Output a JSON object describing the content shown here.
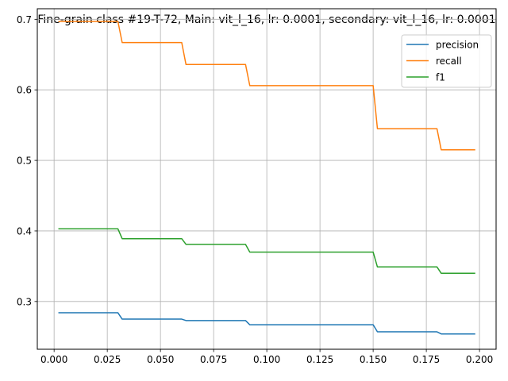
{
  "chart_data": {
    "type": "line",
    "title": "Fine-grain class #19-T-72, Main: vit_l_16, lr: 0.0001, secondary: vit_l_16, lr: 0.0001",
    "xlabel": "",
    "ylabel": "",
    "xlim": [
      -0.0079,
      0.2078
    ],
    "ylim": [
      0.2323,
      0.715
    ],
    "x_ticks": [
      0.0,
      0.025,
      0.05,
      0.075,
      0.1,
      0.125,
      0.15,
      0.175,
      0.2
    ],
    "x_tick_labels": [
      "0.000",
      "0.025",
      "0.050",
      "0.075",
      "0.100",
      "0.125",
      "0.150",
      "0.175",
      "0.200"
    ],
    "y_ticks": [
      0.3,
      0.4,
      0.5,
      0.6,
      0.7
    ],
    "y_tick_labels": [
      "0.3",
      "0.4",
      "0.5",
      "0.6",
      "0.7"
    ],
    "grid": true,
    "legend_position": "top-right",
    "series": [
      {
        "name": "precision",
        "color": "#1f77b4",
        "x": [
          0.002,
          0.03,
          0.032,
          0.06,
          0.062,
          0.09,
          0.092,
          0.15,
          0.152,
          0.18,
          0.182,
          0.198
        ],
        "y": [
          0.284,
          0.284,
          0.275,
          0.275,
          0.273,
          0.273,
          0.267,
          0.267,
          0.257,
          0.257,
          0.254,
          0.254
        ]
      },
      {
        "name": "recall",
        "color": "#ff7f0e",
        "x": [
          0.002,
          0.03,
          0.032,
          0.06,
          0.062,
          0.09,
          0.092,
          0.15,
          0.152,
          0.18,
          0.182,
          0.198
        ],
        "y": [
          0.697,
          0.697,
          0.667,
          0.667,
          0.636,
          0.636,
          0.606,
          0.606,
          0.545,
          0.545,
          0.515,
          0.515
        ]
      },
      {
        "name": "f1",
        "color": "#2ca02c",
        "x": [
          0.002,
          0.03,
          0.032,
          0.06,
          0.062,
          0.09,
          0.092,
          0.15,
          0.152,
          0.18,
          0.182,
          0.198
        ],
        "y": [
          0.403,
          0.403,
          0.389,
          0.389,
          0.381,
          0.381,
          0.37,
          0.37,
          0.349,
          0.349,
          0.34,
          0.34
        ]
      }
    ]
  }
}
